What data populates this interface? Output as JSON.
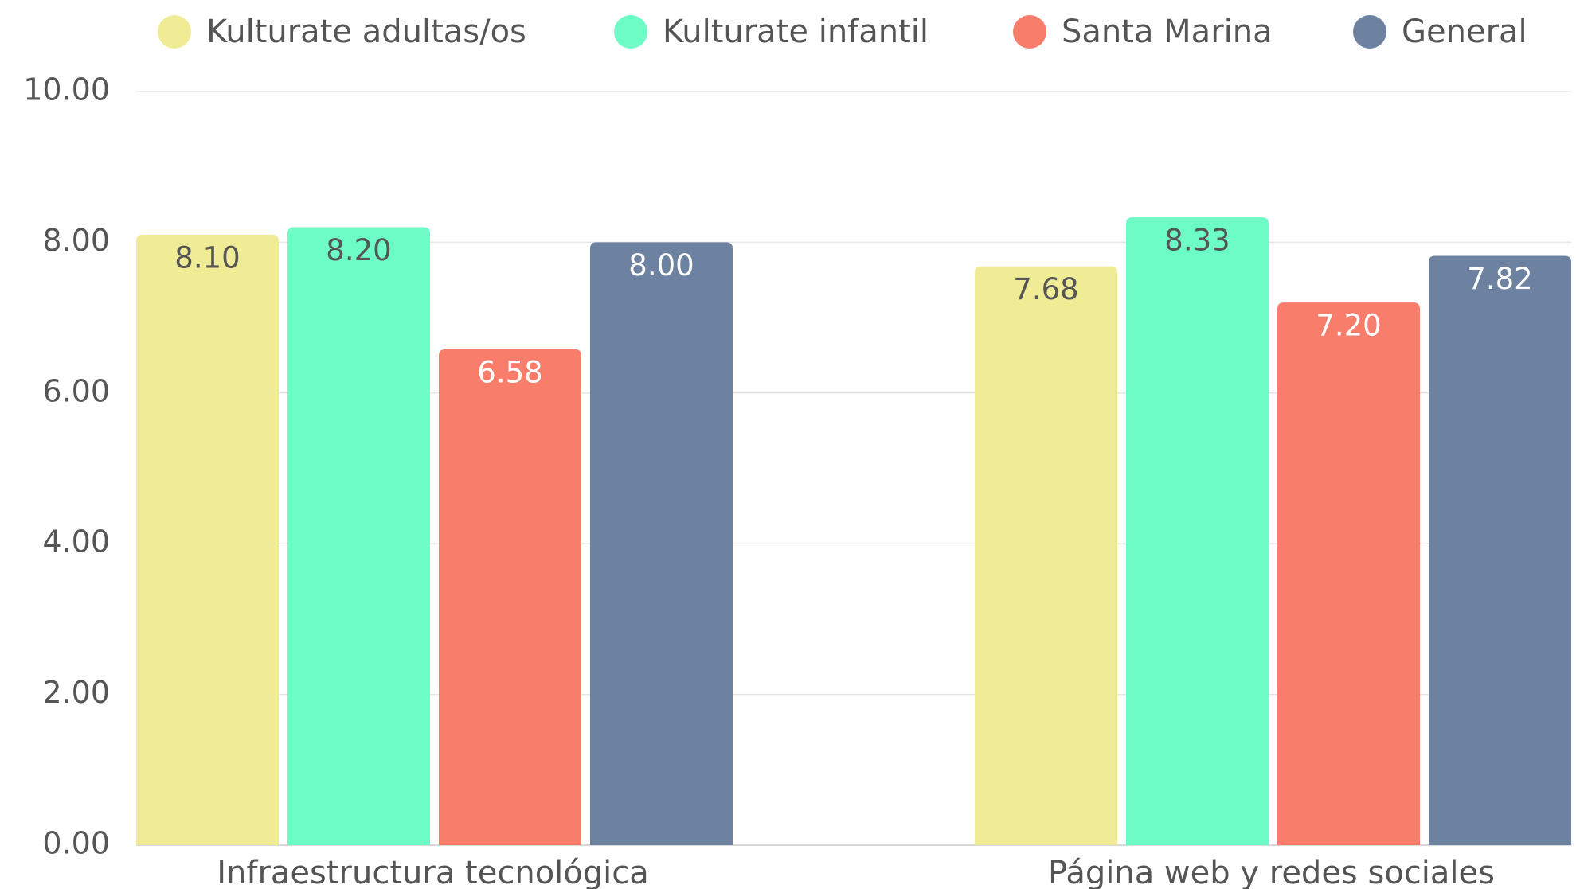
{
  "chart_data": {
    "type": "bar",
    "categories": [
      "Infraestructura tecnológica",
      "Página web y redes sociales"
    ],
    "series": [
      {
        "name": "Kulturate adultas/os",
        "color": "#f0ec96",
        "values": [
          8.1,
          7.68
        ],
        "value_labels": [
          "8.10",
          "7.68"
        ]
      },
      {
        "name": "Kulturate infantil",
        "color": "#6dfcc5",
        "values": [
          8.2,
          8.33
        ],
        "value_labels": [
          "8.20",
          "8.33"
        ]
      },
      {
        "name": "Santa Marina",
        "color": "#f87d6b",
        "values": [
          6.58,
          7.2
        ],
        "value_labels": [
          "6.58",
          "7.20"
        ]
      },
      {
        "name": "General",
        "color": "#6d82a0",
        "values": [
          8.0,
          7.82
        ],
        "value_labels": [
          "8.00",
          "7.82"
        ]
      }
    ],
    "ylim": [
      0,
      10
    ],
    "yticks": [
      {
        "value": 0,
        "label": "0.00"
      },
      {
        "value": 2,
        "label": "2.00"
      },
      {
        "value": 4,
        "label": "4.00"
      },
      {
        "value": 6,
        "label": "6.00"
      },
      {
        "value": 8,
        "label": "8.00"
      },
      {
        "value": 10,
        "label": "10.00"
      }
    ],
    "grid": true,
    "legend": "top"
  }
}
